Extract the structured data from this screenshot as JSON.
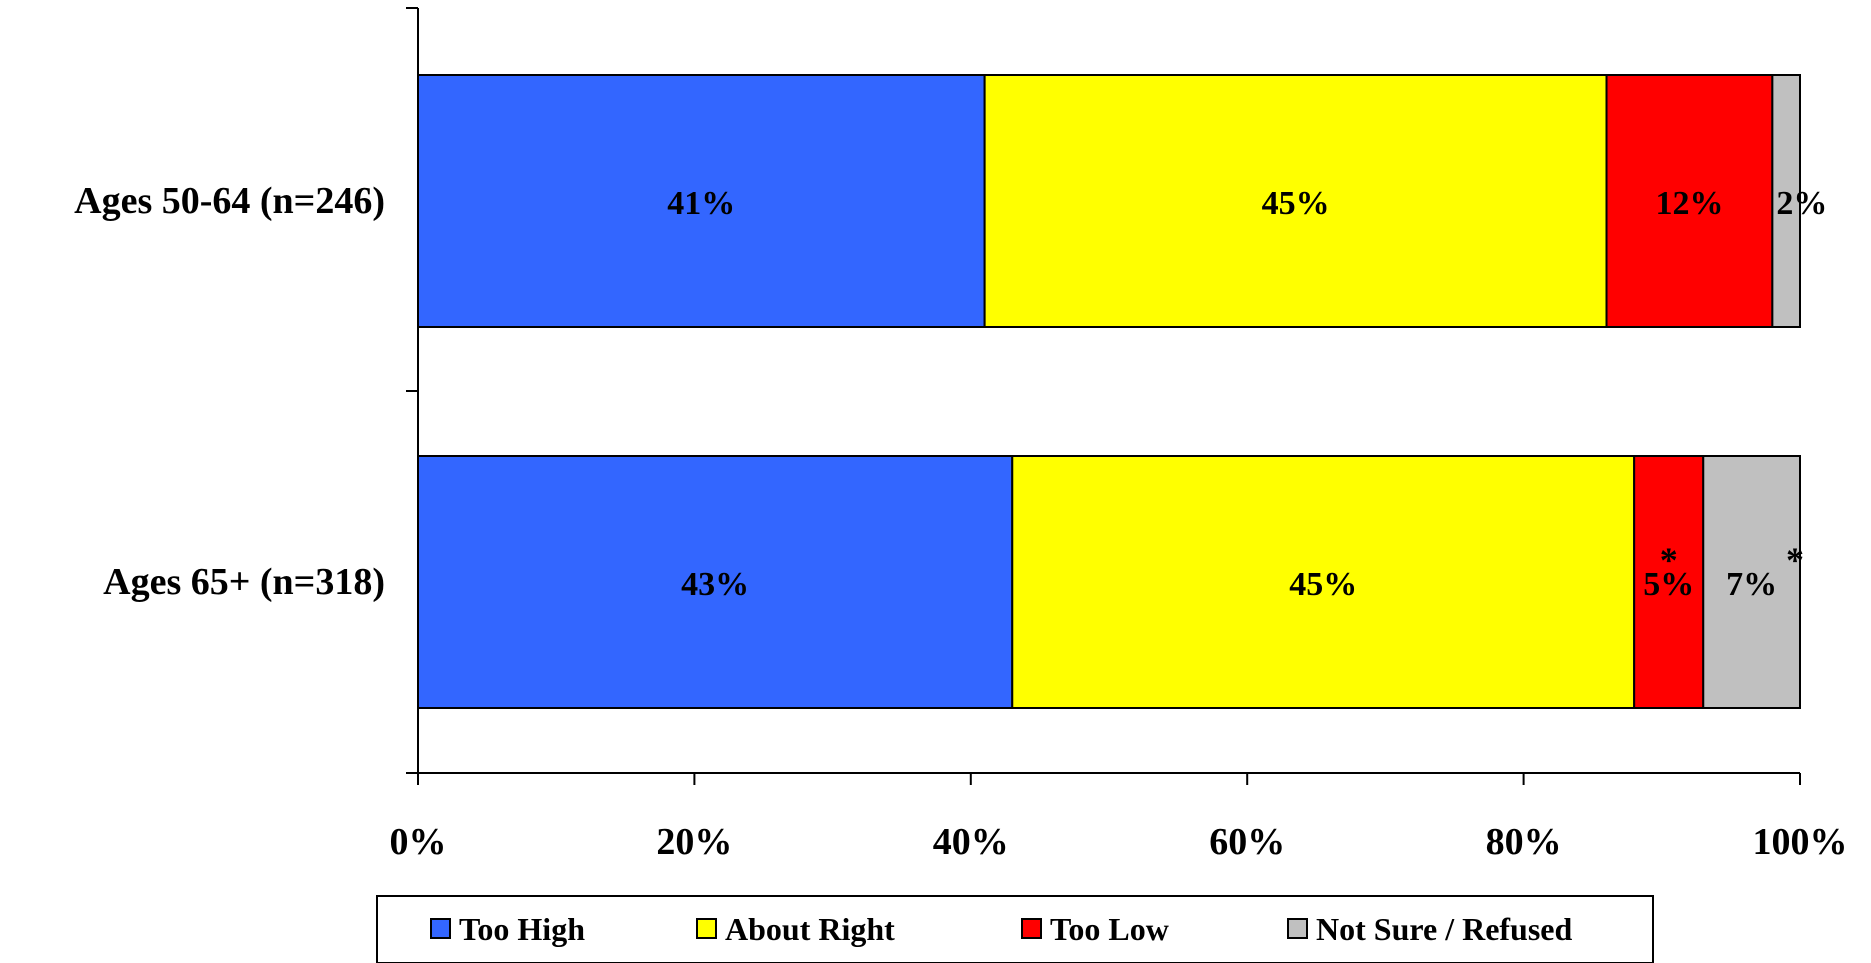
{
  "chart_data": {
    "type": "bar",
    "orientation": "horizontal",
    "stacked": true,
    "categories": [
      "Ages 50-64 (n=246)",
      "Ages 65+ (n=318)"
    ],
    "series": [
      {
        "name": "Too High",
        "color": "#3366FF",
        "values": [
          41,
          43
        ],
        "labels": [
          "41%",
          "43%"
        ]
      },
      {
        "name": "About Right",
        "color": "#FFFF00",
        "values": [
          45,
          45
        ],
        "labels": [
          "45%",
          "45%"
        ]
      },
      {
        "name": "Too Low",
        "color": "#FF0000",
        "values": [
          12,
          5
        ],
        "labels": [
          "12%",
          "5%"
        ]
      },
      {
        "name": "Not Sure / Refused",
        "color": "#C0C0C0",
        "values": [
          2,
          7
        ],
        "labels": [
          "2%",
          "7%"
        ]
      }
    ],
    "annotations": [
      {
        "category": 1,
        "series": 2,
        "text": "*"
      },
      {
        "category": 1,
        "series": 3,
        "text": "*"
      }
    ],
    "xticks": [
      "0%",
      "20%",
      "40%",
      "60%",
      "80%",
      "100%"
    ],
    "xlim": [
      0,
      100
    ],
    "grid": false,
    "legend_position": "bottom"
  }
}
